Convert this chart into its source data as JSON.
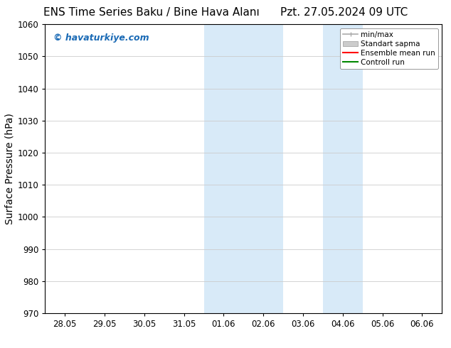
{
  "title_left": "ENS Time Series Baku / Bine Hava Alanı",
  "title_right": "Pzt. 27.05.2024 09 UTC",
  "ylabel": "Surface Pressure (hPa)",
  "ylim": [
    970,
    1060
  ],
  "yticks": [
    970,
    980,
    990,
    1000,
    1010,
    1020,
    1030,
    1040,
    1050,
    1060
  ],
  "xlabel_dates": [
    "28.05",
    "29.05",
    "30.05",
    "31.05",
    "01.06",
    "02.06",
    "03.06",
    "04.06",
    "05.06",
    "06.06"
  ],
  "watermark": "© havaturkiye.com",
  "watermark_color": "#1a6ab5",
  "background_color": "#ffffff",
  "shaded_regions": [
    {
      "xstart": 4,
      "xend": 6
    },
    {
      "xstart": 7,
      "xend": 8
    }
  ],
  "shaded_color": "#d8eaf8",
  "legend_items": [
    {
      "label": "min/max",
      "color": "#aaaaaa",
      "style": "minmax"
    },
    {
      "label": "Standart sapma",
      "color": "#cccccc",
      "style": "fill"
    },
    {
      "label": "Ensemble mean run",
      "color": "#ff0000",
      "style": "line"
    },
    {
      "label": "Controll run",
      "color": "#008800",
      "style": "line"
    }
  ],
  "grid_color": "#cccccc",
  "spine_color": "#000000",
  "title_fontsize": 11,
  "tick_fontsize": 8.5,
  "ylabel_fontsize": 10,
  "watermark_fontsize": 9,
  "legend_fontsize": 7.5
}
